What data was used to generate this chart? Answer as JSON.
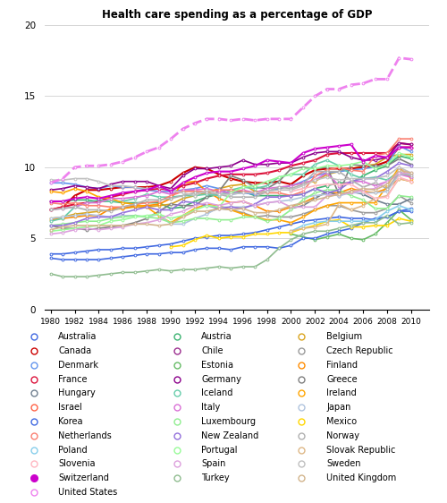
{
  "title": "Health care spending as a percentage of GDP",
  "years": [
    1980,
    1981,
    1982,
    1983,
    1984,
    1985,
    1986,
    1987,
    1988,
    1989,
    1990,
    1991,
    1992,
    1993,
    1994,
    1995,
    1996,
    1997,
    1998,
    1999,
    2000,
    2001,
    2002,
    2003,
    2004,
    2005,
    2006,
    2007,
    2008,
    2009,
    2010
  ],
  "countries": {
    "Australia": {
      "color": "#4169E1",
      "lw": 1.2,
      "ls": "solid",
      "data": [
        3.9,
        3.9,
        4.0,
        4.1,
        4.2,
        4.2,
        4.3,
        4.3,
        4.4,
        4.5,
        4.6,
        4.8,
        5.0,
        5.1,
        5.2,
        5.2,
        5.3,
        5.4,
        5.6,
        5.8,
        6.0,
        6.2,
        6.3,
        6.4,
        6.5,
        6.4,
        6.4,
        6.3,
        6.5,
        6.9,
        6.9
      ]
    },
    "Austria": {
      "color": "#3CB371",
      "lw": 1.2,
      "ls": "solid",
      "data": [
        7.6,
        7.6,
        7.7,
        7.7,
        7.6,
        7.6,
        7.5,
        7.5,
        7.5,
        7.5,
        7.1,
        7.2,
        7.6,
        7.9,
        8.1,
        8.2,
        8.3,
        8.0,
        8.0,
        8.0,
        8.0,
        8.1,
        8.5,
        8.7,
        8.9,
        8.9,
        9.4,
        9.8,
        10.1,
        10.8,
        10.6
      ]
    },
    "Belgium": {
      "color": "#DAA520",
      "lw": 1.2,
      "ls": "solid",
      "data": [
        6.4,
        6.5,
        6.7,
        6.8,
        6.9,
        7.0,
        7.1,
        7.2,
        7.2,
        7.3,
        7.4,
        7.8,
        8.0,
        8.2,
        8.5,
        8.7,
        8.8,
        8.3,
        8.3,
        8.5,
        8.7,
        8.9,
        9.0,
        9.5,
        9.7,
        9.9,
        10.1,
        10.2,
        10.7,
        10.9,
        10.9
      ]
    },
    "Canada": {
      "color": "#CC0000",
      "lw": 1.5,
      "ls": "solid",
      "data": [
        7.0,
        7.2,
        8.0,
        8.4,
        8.4,
        8.5,
        8.6,
        8.6,
        8.6,
        8.7,
        9.0,
        9.6,
        10.0,
        9.9,
        9.5,
        9.2,
        9.0,
        8.9,
        8.9,
        9.0,
        8.8,
        9.4,
        9.8,
        9.9,
        9.9,
        9.9,
        10.0,
        10.1,
        10.4,
        11.4,
        11.4
      ]
    },
    "Chile": {
      "color": "#9B2D8E",
      "lw": 1.2,
      "ls": "solid",
      "data": [
        null,
        null,
        null,
        null,
        null,
        null,
        null,
        null,
        null,
        null,
        null,
        null,
        null,
        null,
        null,
        null,
        null,
        null,
        null,
        null,
        null,
        null,
        null,
        null,
        null,
        null,
        null,
        null,
        null,
        null,
        7.4
      ]
    },
    "Czech Republic": {
      "color": "#999999",
      "lw": 1.2,
      "ls": "solid",
      "data": [
        null,
        null,
        null,
        null,
        null,
        null,
        null,
        null,
        null,
        null,
        null,
        null,
        null,
        6.8,
        7.1,
        7.0,
        6.8,
        6.5,
        6.6,
        6.5,
        6.5,
        6.7,
        7.0,
        7.3,
        7.3,
        7.0,
        6.8,
        6.8,
        7.1,
        8.0,
        7.5
      ]
    },
    "Denmark": {
      "color": "#6495ED",
      "lw": 1.2,
      "ls": "solid",
      "data": [
        8.9,
        8.9,
        8.8,
        8.6,
        8.5,
        8.7,
        8.6,
        8.6,
        8.4,
        8.3,
        8.3,
        8.4,
        8.5,
        8.7,
        8.5,
        8.1,
        8.2,
        8.1,
        8.3,
        8.5,
        8.7,
        9.0,
        9.4,
        9.6,
        9.7,
        9.8,
        9.9,
        10.0,
        10.2,
        11.5,
        11.1
      ]
    },
    "Estonia": {
      "color": "#66BB66",
      "lw": 1.2,
      "ls": "solid",
      "data": [
        null,
        null,
        null,
        null,
        null,
        null,
        null,
        null,
        null,
        null,
        null,
        null,
        null,
        null,
        null,
        null,
        null,
        null,
        null,
        null,
        5.3,
        5.1,
        4.9,
        5.1,
        5.3,
        5.0,
        4.9,
        5.3,
        6.1,
        7.0,
        6.3
      ]
    },
    "Finland": {
      "color": "#FF8C00",
      "lw": 1.2,
      "ls": "solid",
      "data": [
        6.3,
        6.4,
        6.5,
        6.6,
        6.6,
        7.1,
        7.1,
        7.3,
        7.3,
        7.4,
        7.8,
        8.9,
        9.0,
        8.3,
        7.8,
        7.5,
        7.6,
        7.3,
        6.9,
        6.9,
        7.2,
        7.5,
        7.9,
        8.2,
        8.2,
        8.5,
        8.3,
        8.2,
        8.5,
        9.2,
        9.0
      ]
    },
    "France": {
      "color": "#DC143C",
      "lw": 1.5,
      "ls": "solid",
      "data": [
        7.0,
        7.2,
        7.4,
        7.5,
        7.6,
        7.9,
        8.1,
        8.3,
        8.4,
        8.5,
        8.4,
        8.7,
        8.9,
        9.2,
        9.4,
        9.5,
        9.5,
        9.5,
        9.6,
        9.8,
        10.1,
        10.3,
        10.5,
        10.9,
        11.0,
        11.0,
        11.0,
        11.0,
        11.0,
        11.7,
        11.6
      ]
    },
    "Germany": {
      "color": "#8B008B",
      "lw": 1.2,
      "ls": "solid",
      "data": [
        8.4,
        8.5,
        8.7,
        8.6,
        8.5,
        8.8,
        9.0,
        9.0,
        9.0,
        8.7,
        8.5,
        9.4,
        9.9,
        9.9,
        10.0,
        10.1,
        10.5,
        10.2,
        10.2,
        10.3,
        10.3,
        10.7,
        11.0,
        11.1,
        11.1,
        10.7,
        10.5,
        10.5,
        10.7,
        11.7,
        11.6
      ]
    },
    "Greece": {
      "color": "#808080",
      "lw": 1.2,
      "ls": "solid",
      "data": [
        5.9,
        5.7,
        5.7,
        5.6,
        5.7,
        5.8,
        5.9,
        6.1,
        6.4,
        6.9,
        7.4,
        7.3,
        7.3,
        7.9,
        8.3,
        9.4,
        9.1,
        8.6,
        8.5,
        9.0,
        9.9,
        10.0,
        9.9,
        10.0,
        8.1,
        10.2,
        10.1,
        10.1,
        10.1,
        10.6,
        10.2
      ]
    },
    "Hungary": {
      "color": "#708090",
      "lw": 1.2,
      "ls": "solid",
      "data": [
        null,
        null,
        null,
        null,
        null,
        null,
        null,
        null,
        null,
        null,
        null,
        null,
        null,
        null,
        null,
        null,
        null,
        null,
        null,
        null,
        7.1,
        7.3,
        7.8,
        8.3,
        8.0,
        8.3,
        8.1,
        7.7,
        7.4,
        7.4,
        7.8
      ]
    },
    "Iceland": {
      "color": "#66CDAA",
      "lw": 1.2,
      "ls": "solid",
      "data": [
        6.2,
        6.4,
        7.2,
        7.5,
        7.7,
        7.6,
        7.6,
        7.8,
        8.1,
        7.9,
        7.9,
        8.0,
        8.0,
        8.1,
        8.0,
        8.4,
        8.6,
        8.5,
        8.7,
        9.3,
        9.5,
        9.5,
        10.2,
        10.5,
        10.1,
        9.5,
        9.2,
        9.3,
        9.1,
        9.7,
        9.3
      ]
    },
    "Ireland": {
      "color": "#FFA500",
      "lw": 1.2,
      "ls": "solid",
      "data": [
        8.3,
        8.2,
        8.5,
        8.3,
        7.9,
        7.8,
        7.5,
        7.4,
        7.2,
        6.6,
        6.1,
        6.6,
        7.1,
        7.4,
        7.3,
        7.0,
        6.7,
        6.5,
        6.3,
        6.3,
        6.1,
        6.5,
        7.0,
        7.3,
        7.5,
        7.5,
        7.5,
        7.5,
        8.7,
        10.0,
        9.2
      ]
    },
    "Israel": {
      "color": "#FF6347",
      "lw": 1.2,
      "ls": "solid",
      "data": [
        null,
        null,
        null,
        null,
        null,
        null,
        null,
        null,
        null,
        null,
        null,
        null,
        null,
        null,
        null,
        null,
        null,
        null,
        null,
        null,
        null,
        null,
        null,
        null,
        null,
        null,
        null,
        null,
        null,
        null,
        7.5
      ]
    },
    "Italy": {
      "color": "#DA70D6",
      "lw": 1.2,
      "ls": "solid",
      "data": [
        7.0,
        7.1,
        7.2,
        7.5,
        7.5,
        7.8,
        7.8,
        7.9,
        8.0,
        8.3,
        8.1,
        8.4,
        8.4,
        8.5,
        8.3,
        8.2,
        8.4,
        8.2,
        8.5,
        8.6,
        8.7,
        8.9,
        9.1,
        9.6,
        8.7,
        9.0,
        9.0,
        8.7,
        9.0,
        9.5,
        9.3
      ]
    },
    "Japan": {
      "color": "#B0C4DE",
      "lw": 1.2,
      "ls": "solid",
      "data": [
        6.4,
        6.5,
        6.6,
        6.7,
        6.6,
        6.5,
        6.6,
        6.6,
        6.5,
        6.7,
        6.0,
        6.0,
        6.4,
        6.7,
        7.2,
        7.2,
        7.2,
        7.3,
        7.5,
        7.6,
        7.7,
        7.9,
        8.0,
        8.1,
        8.0,
        8.2,
        8.2,
        8.2,
        8.3,
        9.5,
        9.5
      ]
    },
    "Korea": {
      "color": "#4169E1",
      "lw": 1.2,
      "ls": "solid",
      "data": [
        3.6,
        3.5,
        3.5,
        3.5,
        3.5,
        3.6,
        3.7,
        3.8,
        3.9,
        3.9,
        4.0,
        4.0,
        4.2,
        4.3,
        4.3,
        4.2,
        4.4,
        4.4,
        4.4,
        4.3,
        4.5,
        5.0,
        5.0,
        5.3,
        5.5,
        5.7,
        6.1,
        6.4,
        6.5,
        6.9,
        7.1
      ]
    },
    "Luxembourg": {
      "color": "#90EE90",
      "lw": 1.2,
      "ls": "solid",
      "data": [
        5.9,
        6.0,
        6.1,
        6.2,
        6.2,
        6.4,
        6.5,
        6.6,
        6.5,
        6.4,
        6.1,
        6.2,
        6.4,
        6.4,
        6.3,
        6.3,
        6.5,
        6.5,
        6.2,
        6.4,
        7.0,
        7.7,
        8.2,
        8.4,
        8.4,
        8.0,
        7.7,
        7.1,
        7.1,
        8.0,
        7.9
      ]
    },
    "Mexico": {
      "color": "#FFD700",
      "lw": 1.2,
      "ls": "solid",
      "data": [
        null,
        null,
        null,
        null,
        null,
        null,
        null,
        null,
        null,
        null,
        4.4,
        4.5,
        4.9,
        5.2,
        5.0,
        5.1,
        5.1,
        5.3,
        5.3,
        5.4,
        5.4,
        5.7,
        5.9,
        6.2,
        6.3,
        5.8,
        5.8,
        5.9,
        5.9,
        6.4,
        6.2
      ]
    },
    "Netherlands": {
      "color": "#FA8072",
      "lw": 1.2,
      "ls": "solid",
      "data": [
        7.5,
        7.4,
        7.5,
        7.3,
        7.3,
        7.2,
        7.2,
        7.4,
        7.5,
        7.6,
        8.0,
        8.3,
        8.3,
        8.3,
        8.4,
        8.4,
        8.3,
        8.2,
        8.2,
        8.2,
        8.0,
        8.3,
        9.4,
        9.8,
        10.0,
        9.8,
        9.7,
        10.8,
        11.0,
        12.0,
        12.0
      ]
    },
    "New Zealand": {
      "color": "#9370DB",
      "lw": 1.2,
      "ls": "solid",
      "data": [
        5.9,
        5.9,
        6.1,
        6.4,
        6.5,
        6.5,
        6.8,
        7.0,
        7.2,
        7.0,
        7.0,
        7.6,
        7.5,
        7.3,
        7.1,
        7.2,
        7.1,
        7.4,
        7.9,
        7.9,
        8.0,
        8.1,
        8.5,
        8.2,
        8.4,
        9.0,
        9.2,
        9.2,
        9.7,
        10.3,
        10.1
      ]
    },
    "Norway": {
      "color": "#B0B0B0",
      "lw": 1.2,
      "ls": "solid",
      "data": [
        7.0,
        7.1,
        7.2,
        7.0,
        7.0,
        6.9,
        7.2,
        7.4,
        7.7,
        7.7,
        7.8,
        8.0,
        8.2,
        8.2,
        8.1,
        7.9,
        7.9,
        7.9,
        8.3,
        8.6,
        8.5,
        8.8,
        9.7,
        9.7,
        9.7,
        9.1,
        8.6,
        8.9,
        8.5,
        9.6,
        9.4
      ]
    },
    "Poland": {
      "color": "#87CEEB",
      "lw": 1.2,
      "ls": "solid",
      "data": [
        null,
        null,
        null,
        null,
        null,
        null,
        null,
        null,
        null,
        null,
        null,
        null,
        null,
        null,
        null,
        null,
        null,
        null,
        null,
        null,
        5.5,
        5.9,
        6.1,
        6.2,
        6.2,
        6.2,
        6.2,
        6.3,
        6.9,
        7.3,
        7.0
      ]
    },
    "Portugal": {
      "color": "#98FB98",
      "lw": 1.2,
      "ls": "solid",
      "data": [
        5.5,
        5.6,
        5.7,
        5.8,
        5.9,
        6.2,
        6.3,
        6.5,
        6.6,
        6.7,
        6.4,
        6.6,
        7.0,
        7.3,
        7.2,
        8.2,
        8.6,
        8.7,
        9.0,
        9.3,
        9.5,
        9.9,
        9.9,
        10.1,
        10.1,
        10.2,
        10.4,
        9.9,
        10.2,
        11.0,
        10.7
      ]
    },
    "Slovak Republic": {
      "color": "#DEB887",
      "lw": 1.2,
      "ls": "solid",
      "data": [
        null,
        null,
        null,
        null,
        null,
        null,
        null,
        null,
        null,
        null,
        null,
        null,
        null,
        null,
        null,
        null,
        null,
        null,
        null,
        null,
        5.5,
        5.7,
        5.8,
        6.0,
        7.4,
        7.0,
        7.3,
        7.8,
        8.0,
        9.2,
        9.0
      ]
    },
    "Slovenia": {
      "color": "#FFB6C1",
      "lw": 1.2,
      "ls": "solid",
      "data": [
        null,
        null,
        null,
        null,
        null,
        null,
        null,
        null,
        null,
        null,
        null,
        null,
        null,
        null,
        null,
        null,
        null,
        null,
        null,
        null,
        8.3,
        8.5,
        8.7,
        8.8,
        8.8,
        8.8,
        8.3,
        7.8,
        7.9,
        9.3,
        9.0
      ]
    },
    "Spain": {
      "color": "#DDA0DD",
      "lw": 1.2,
      "ls": "solid",
      "data": [
        5.3,
        5.4,
        5.6,
        5.7,
        5.6,
        5.7,
        5.8,
        6.0,
        6.1,
        6.3,
        6.7,
        6.9,
        7.3,
        7.5,
        7.3,
        7.5,
        7.6,
        7.3,
        7.5,
        7.6,
        7.2,
        7.2,
        7.2,
        8.0,
        8.1,
        8.2,
        8.4,
        8.5,
        9.0,
        9.6,
        9.6
      ]
    },
    "Sweden": {
      "color": "#C0C0C0",
      "lw": 1.2,
      "ls": "solid",
      "data": [
        9.1,
        9.1,
        9.2,
        9.2,
        9.0,
        8.7,
        8.7,
        8.6,
        8.5,
        8.6,
        8.4,
        8.2,
        8.0,
        8.4,
        8.1,
        8.1,
        8.2,
        8.2,
        8.3,
        8.4,
        8.4,
        8.7,
        9.1,
        9.3,
        9.1,
        9.2,
        9.2,
        9.2,
        9.4,
        10.0,
        9.6
      ]
    },
    "Switzerland": {
      "color": "#CC00CC",
      "lw": 1.5,
      "ls": "solid",
      "data": [
        7.6,
        7.6,
        7.8,
        7.9,
        7.8,
        8.0,
        8.2,
        8.3,
        8.4,
        8.7,
        8.3,
        8.9,
        9.3,
        9.6,
        9.7,
        9.7,
        9.9,
        10.1,
        10.5,
        10.4,
        10.3,
        11.0,
        11.3,
        11.4,
        11.5,
        11.6,
        10.4,
        10.8,
        10.7,
        11.4,
        11.4
      ]
    },
    "Turkey": {
      "color": "#8FBC8F",
      "lw": 1.2,
      "ls": "solid",
      "data": [
        2.5,
        2.3,
        2.3,
        2.3,
        2.4,
        2.5,
        2.6,
        2.6,
        2.7,
        2.8,
        2.7,
        2.8,
        2.8,
        2.9,
        3.0,
        2.9,
        3.0,
        3.0,
        3.5,
        4.3,
        4.9,
        5.3,
        5.5,
        5.5,
        5.7,
        5.9,
        6.1,
        6.1,
        6.6,
        6.0,
        6.1
      ]
    },
    "United Kingdom": {
      "color": "#D2B48C",
      "lw": 1.2,
      "ls": "solid",
      "data": [
        5.6,
        5.8,
        5.9,
        5.9,
        5.9,
        5.9,
        5.9,
        6.0,
        6.0,
        5.9,
        6.0,
        6.5,
        6.9,
        6.9,
        7.1,
        7.0,
        7.1,
        6.8,
        6.8,
        7.0,
        7.3,
        7.5,
        7.7,
        7.9,
        8.1,
        8.3,
        8.5,
        8.4,
        8.8,
        9.8,
        9.6
      ]
    },
    "United States": {
      "color": "#EE82EE",
      "lw": 2.0,
      "ls": "dashed",
      "data": [
        8.9,
        9.2,
        10.0,
        10.1,
        10.1,
        10.2,
        10.4,
        10.7,
        11.1,
        11.4,
        12.0,
        12.7,
        13.1,
        13.4,
        13.4,
        13.3,
        13.4,
        13.3,
        13.4,
        13.4,
        13.4,
        14.2,
        15.0,
        15.5,
        15.5,
        15.8,
        15.9,
        16.2,
        16.2,
        17.7,
        17.6
      ]
    }
  },
  "legend_order": [
    "Australia",
    "Austria",
    "Belgium",
    "Canada",
    "Chile",
    "Czech Republic",
    "Denmark",
    "Estonia",
    "Finland",
    "France",
    "Germany",
    "Greece",
    "Hungary",
    "Iceland",
    "Ireland",
    "Israel",
    "Italy",
    "Japan",
    "Korea",
    "Luxembourg",
    "Mexico",
    "Netherlands",
    "New Zealand",
    "Norway",
    "Poland",
    "Portugal",
    "Slovak Republic",
    "Slovenia",
    "Spain",
    "Sweden",
    "Switzerland",
    "Turkey",
    "United Kingdom",
    "United States"
  ],
  "legend_filled": [
    "Switzerland"
  ],
  "background_color": "#ffffff",
  "grid_color": "#d0d0d0"
}
